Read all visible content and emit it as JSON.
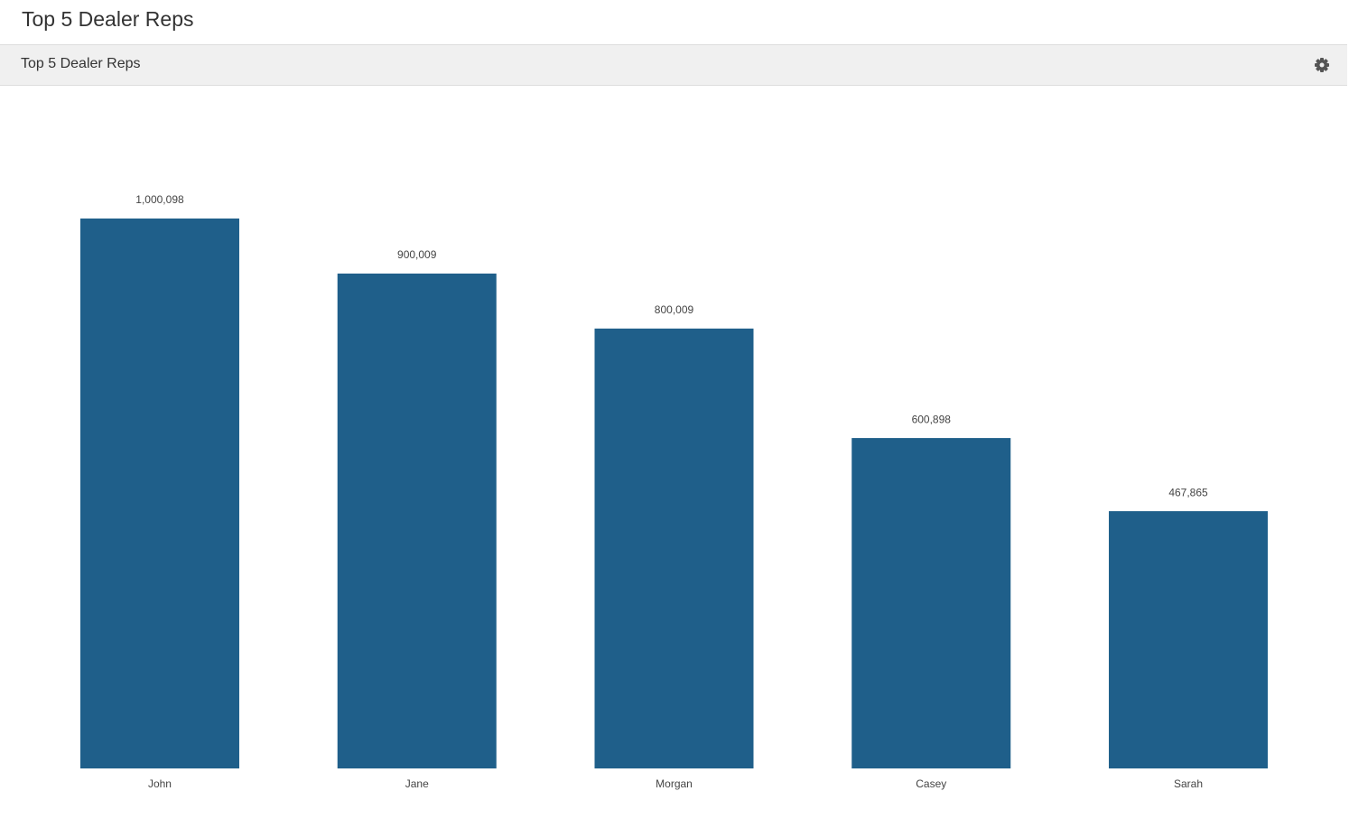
{
  "page_title": "Top 5 Dealer Reps",
  "panel": {
    "title": "Top 5 Dealer Reps"
  },
  "chart_data": {
    "type": "bar",
    "categories": [
      "John",
      "Jane",
      "Morgan",
      "Casey",
      "Sarah"
    ],
    "values": [
      1000098,
      900009,
      800009,
      600898,
      467865
    ],
    "value_labels": [
      "1,000,098",
      "900,009",
      "800,009",
      "600,898",
      "467,865"
    ],
    "color": "#1f5f8a"
  }
}
